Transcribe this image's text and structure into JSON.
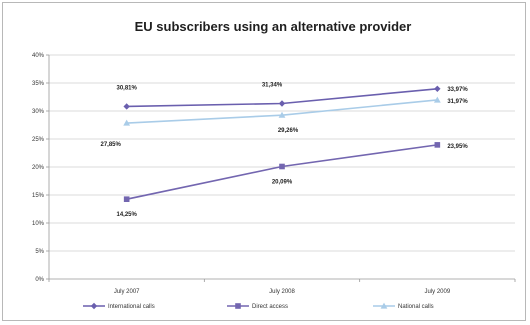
{
  "chart_data": {
    "type": "line",
    "title": "EU subscribers using an alternative provider",
    "categories": [
      "July 2007",
      "July 2008",
      "July 2009"
    ],
    "ylim": [
      0,
      40
    ],
    "yticks": [
      "0%",
      "5%",
      "10%",
      "15%",
      "20%",
      "25%",
      "30%",
      "35%",
      "40%"
    ],
    "grid": true,
    "legend_position": "bottom",
    "series": [
      {
        "name": "International calls",
        "values": [
          30.81,
          31.34,
          33.97
        ],
        "labels": [
          "30,81%",
          "31,34%",
          "33,97%"
        ],
        "color": "#6a5fae",
        "marker": "diamond"
      },
      {
        "name": "Direct access",
        "values": [
          14.25,
          20.09,
          23.95
        ],
        "labels": [
          "14,25%",
          "20,09%",
          "23,95%"
        ],
        "color": "#7366b0",
        "marker": "square"
      },
      {
        "name": "National calls",
        "values": [
          27.85,
          29.26,
          31.97
        ],
        "labels": [
          "27,85%",
          "29,26%",
          "31,97%"
        ],
        "color": "#a9cce8",
        "marker": "triangle"
      }
    ]
  }
}
